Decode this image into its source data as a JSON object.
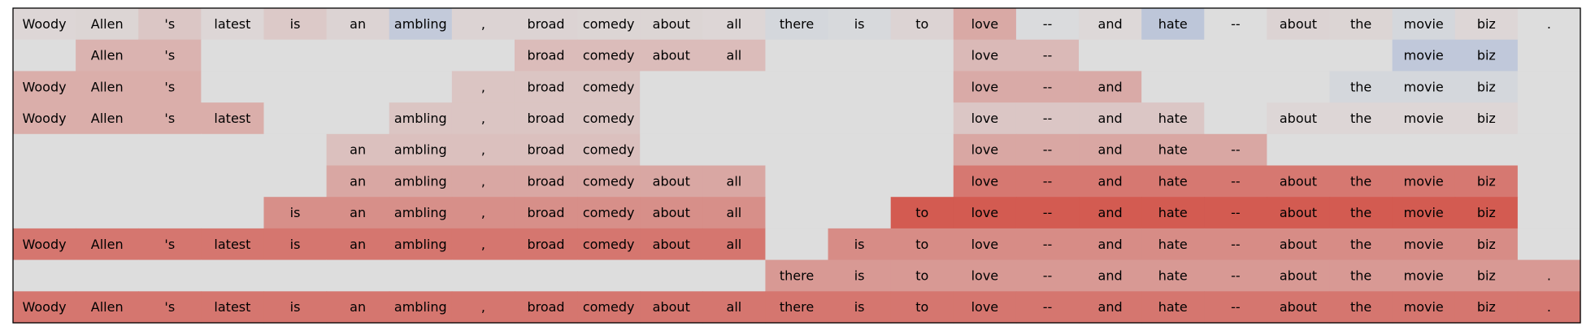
{
  "chart_data": {
    "type": "heatmap",
    "columns": [
      "Woody",
      "Allen",
      "'s",
      "latest",
      "is",
      "an",
      "ambling",
      ",",
      "broad",
      "comedy",
      "about",
      "all",
      "there",
      "is",
      "to",
      "love",
      "--",
      "and",
      "hate",
      "--",
      "about",
      "the",
      "movie",
      "biz",
      "."
    ],
    "colors": {
      "neutral": "#dddddd",
      "negative": "#4a75cc",
      "positive": "#d13a2e"
    },
    "rows": [
      {
        "present": [
          1,
          1,
          1,
          1,
          1,
          1,
          1,
          1,
          1,
          1,
          1,
          1,
          1,
          1,
          1,
          1,
          1,
          1,
          1,
          1,
          1,
          1,
          1,
          1,
          1
        ],
        "values": [
          0.04,
          0.05,
          0.14,
          0.04,
          0.12,
          0.06,
          -0.18,
          0.06,
          0.06,
          0.05,
          0.05,
          0.04,
          -0.06,
          -0.04,
          0.06,
          0.32,
          -0.02,
          0.03,
          -0.22,
          0.0,
          0.06,
          0.05,
          -0.06,
          0.04,
          0.0
        ]
      },
      {
        "present": [
          0,
          1,
          1,
          0,
          0,
          0,
          0,
          0,
          1,
          1,
          1,
          1,
          0,
          0,
          0,
          1,
          1,
          0,
          0,
          0,
          0,
          0,
          1,
          1,
          0
        ],
        "values": [
          0,
          0.26,
          0.26,
          0,
          0,
          0,
          0,
          0,
          0.2,
          0.2,
          0.2,
          0.2,
          0,
          0,
          0,
          0.22,
          0.22,
          0,
          0,
          0,
          0,
          0,
          -0.2,
          -0.2,
          0
        ]
      },
      {
        "present": [
          1,
          1,
          1,
          0,
          0,
          0,
          0,
          1,
          1,
          1,
          0,
          0,
          0,
          0,
          0,
          1,
          1,
          1,
          0,
          0,
          0,
          1,
          1,
          1,
          0
        ],
        "values": [
          0.29,
          0.29,
          0.29,
          0,
          0,
          0,
          0,
          0.15,
          0.15,
          0.15,
          0,
          0,
          0,
          0,
          0,
          0.31,
          0.31,
          0.31,
          0,
          0,
          0,
          -0.06,
          -0.06,
          -0.06,
          0
        ]
      },
      {
        "present": [
          1,
          1,
          1,
          1,
          0,
          0,
          1,
          1,
          1,
          1,
          0,
          0,
          0,
          0,
          0,
          1,
          1,
          1,
          1,
          0,
          1,
          1,
          1,
          1,
          0
        ],
        "values": [
          0.29,
          0.29,
          0.29,
          0.29,
          0,
          0,
          0.15,
          0.15,
          0.15,
          0.15,
          0,
          0,
          0,
          0,
          0,
          0.14,
          0.14,
          0.14,
          0.14,
          0,
          0.04,
          0.04,
          0.04,
          0.04,
          0
        ]
      },
      {
        "present": [
          0,
          0,
          0,
          0,
          0,
          1,
          1,
          1,
          1,
          1,
          0,
          0,
          0,
          0,
          0,
          1,
          1,
          1,
          1,
          1,
          0,
          0,
          0,
          0,
          0
        ],
        "values": [
          0,
          0,
          0,
          0,
          0,
          0.18,
          0.18,
          0.18,
          0.18,
          0.18,
          0,
          0,
          0,
          0,
          0,
          0.33,
          0.33,
          0.33,
          0.33,
          0.33,
          0,
          0,
          0,
          0,
          0
        ]
      },
      {
        "present": [
          0,
          0,
          0,
          0,
          0,
          1,
          1,
          1,
          1,
          1,
          1,
          1,
          0,
          0,
          0,
          1,
          1,
          1,
          1,
          1,
          1,
          1,
          1,
          1,
          0
        ],
        "values": [
          0,
          0,
          0,
          0,
          0,
          0.33,
          0.33,
          0.33,
          0.33,
          0.33,
          0.33,
          0.33,
          0,
          0,
          0,
          0.62,
          0.62,
          0.62,
          0.62,
          0.62,
          0.62,
          0.62,
          0.62,
          0.62,
          0
        ]
      },
      {
        "present": [
          0,
          0,
          0,
          0,
          1,
          1,
          1,
          1,
          1,
          1,
          1,
          1,
          0,
          0,
          1,
          1,
          1,
          1,
          1,
          1,
          1,
          1,
          1,
          1,
          0
        ],
        "values": [
          0,
          0,
          0,
          0,
          0.48,
          0.48,
          0.48,
          0.48,
          0.48,
          0.48,
          0.48,
          0.48,
          0,
          0,
          0.8,
          0.8,
          0.8,
          0.8,
          0.8,
          0.8,
          0.8,
          0.8,
          0.8,
          0.8,
          0
        ]
      },
      {
        "present": [
          1,
          1,
          1,
          1,
          1,
          1,
          1,
          1,
          1,
          1,
          1,
          1,
          0,
          1,
          1,
          1,
          1,
          1,
          1,
          1,
          1,
          1,
          1,
          1,
          0
        ],
        "values": [
          0.63,
          0.63,
          0.63,
          0.63,
          0.63,
          0.63,
          0.63,
          0.63,
          0.63,
          0.63,
          0.63,
          0.63,
          0,
          0.5,
          0.5,
          0.5,
          0.5,
          0.5,
          0.5,
          0.5,
          0.5,
          0.5,
          0.5,
          0.5,
          0
        ]
      },
      {
        "present": [
          0,
          0,
          0,
          0,
          0,
          0,
          0,
          0,
          0,
          0,
          0,
          0,
          1,
          1,
          1,
          1,
          1,
          1,
          1,
          1,
          1,
          1,
          1,
          1,
          1
        ],
        "values": [
          0,
          0,
          0,
          0,
          0,
          0,
          0,
          0,
          0,
          0,
          0,
          0,
          0.42,
          0.42,
          0.42,
          0.42,
          0.42,
          0.42,
          0.42,
          0.42,
          0.42,
          0.42,
          0.42,
          0.42,
          0.42
        ]
      },
      {
        "present": [
          1,
          1,
          1,
          1,
          1,
          1,
          1,
          1,
          1,
          1,
          1,
          1,
          1,
          1,
          1,
          1,
          1,
          1,
          1,
          1,
          1,
          1,
          1,
          1,
          1
        ],
        "values": [
          0.63,
          0.63,
          0.63,
          0.63,
          0.63,
          0.63,
          0.63,
          0.63,
          0.63,
          0.63,
          0.63,
          0.63,
          0.63,
          0.63,
          0.63,
          0.63,
          0.63,
          0.63,
          0.63,
          0.63,
          0.63,
          0.63,
          0.63,
          0.63,
          0.63
        ]
      }
    ]
  }
}
